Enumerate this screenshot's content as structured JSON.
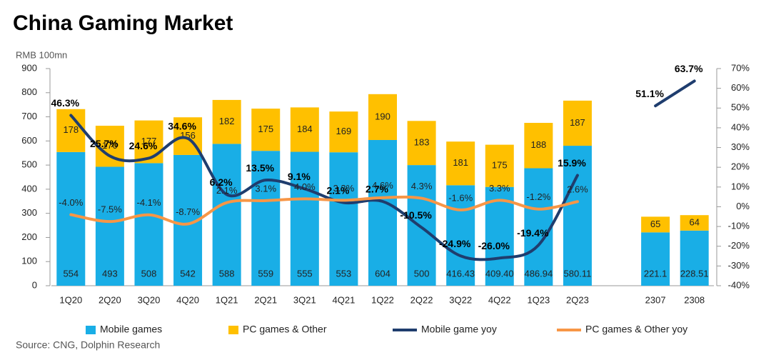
{
  "chart_data": {
    "type": "bar",
    "stacked": true,
    "title": "China Gaming Market",
    "y_label": "RMB 100mn",
    "source": "Source: CNG, Dolphin Research",
    "categories": [
      "1Q20",
      "2Q20",
      "3Q20",
      "4Q20",
      "1Q21",
      "2Q21",
      "3Q21",
      "4Q21",
      "1Q22",
      "2Q22",
      "3Q22",
      "4Q22",
      "1Q23",
      "2Q23",
      null,
      "2307",
      "2308"
    ],
    "ylim": [
      0,
      900
    ],
    "yticks": [
      0,
      100,
      200,
      300,
      400,
      500,
      600,
      700,
      800,
      900
    ],
    "y2lim": [
      -40,
      70
    ],
    "y2ticks": [
      {
        "value": -40,
        "label": "-40%"
      },
      {
        "value": -30,
        "label": "-30%"
      },
      {
        "value": -20,
        "label": "-20%"
      },
      {
        "value": -10,
        "label": "-10%"
      },
      {
        "value": 0,
        "label": "0%"
      },
      {
        "value": 10,
        "label": "10%"
      },
      {
        "value": 20,
        "label": "20%"
      },
      {
        "value": 30,
        "label": "30%"
      },
      {
        "value": 40,
        "label": "40%"
      },
      {
        "value": 50,
        "label": "50%"
      },
      {
        "value": 60,
        "label": "60%"
      },
      {
        "value": 70,
        "label": "70%"
      }
    ],
    "series": [
      {
        "name": "Mobile games",
        "type": "bar",
        "color": "#19aee6",
        "values": [
          554,
          493,
          508,
          542,
          588,
          559,
          555,
          553,
          604,
          500,
          416.43,
          409.4,
          486.94,
          580.11,
          null,
          221.1,
          228.51
        ],
        "value_labels": [
          "554",
          "493",
          "508",
          "542",
          "588",
          "559",
          "555",
          "553",
          "604",
          "500",
          "416.43",
          "409.40",
          "486.94",
          "580.11",
          null,
          "221.1",
          "228.51"
        ]
      },
      {
        "name": "PC games & Other",
        "type": "bar",
        "color": "#ffc000",
        "values": [
          178,
          170,
          177,
          156,
          182,
          175,
          184,
          169,
          190,
          183,
          181,
          175,
          188,
          187,
          null,
          65,
          64
        ],
        "value_labels": [
          "178",
          "170",
          "177",
          "156",
          "182",
          "175",
          "184",
          "169",
          "190",
          "183",
          "181",
          "175",
          "188",
          "187",
          null,
          "65",
          "64"
        ]
      },
      {
        "name": "Mobile game yoy",
        "type": "line",
        "axis": "y2",
        "color": "#1f3d6e",
        "values": [
          46.3,
          25.7,
          24.6,
          34.6,
          6.2,
          13.5,
          9.1,
          2.1,
          2.7,
          -10.5,
          -24.9,
          -26.0,
          -19.4,
          15.9,
          null,
          51.1,
          63.7
        ],
        "value_labels": [
          "46.3%",
          "25.7%",
          "24.6%",
          "34.6%",
          "6.2%",
          "13.5%",
          "9.1%",
          "2.1%",
          "2.7%",
          "-10.5%",
          "-24.9%",
          "-26.0%",
          "-19.4%",
          "15.9%",
          null,
          "51.1%",
          "63.7%"
        ]
      },
      {
        "name": "PC games & Other yoy",
        "type": "line",
        "axis": "y2",
        "color": "#f79646",
        "values": [
          -4.0,
          -7.5,
          -4.1,
          -8.7,
          2.1,
          3.1,
          4.0,
          3.3,
          4.6,
          4.3,
          -1.6,
          3.3,
          -1.2,
          2.6,
          null,
          null,
          null
        ],
        "value_labels": [
          "-4.0%",
          "-7.5%",
          "-4.1%",
          "-8.7%",
          "2.1%",
          "3.1%",
          "4.0%",
          "3.3%",
          "4.6%",
          "4.3%",
          "-1.6%",
          "3.3%",
          "-1.2%",
          "2.6%",
          null,
          null,
          null
        ]
      }
    ]
  }
}
